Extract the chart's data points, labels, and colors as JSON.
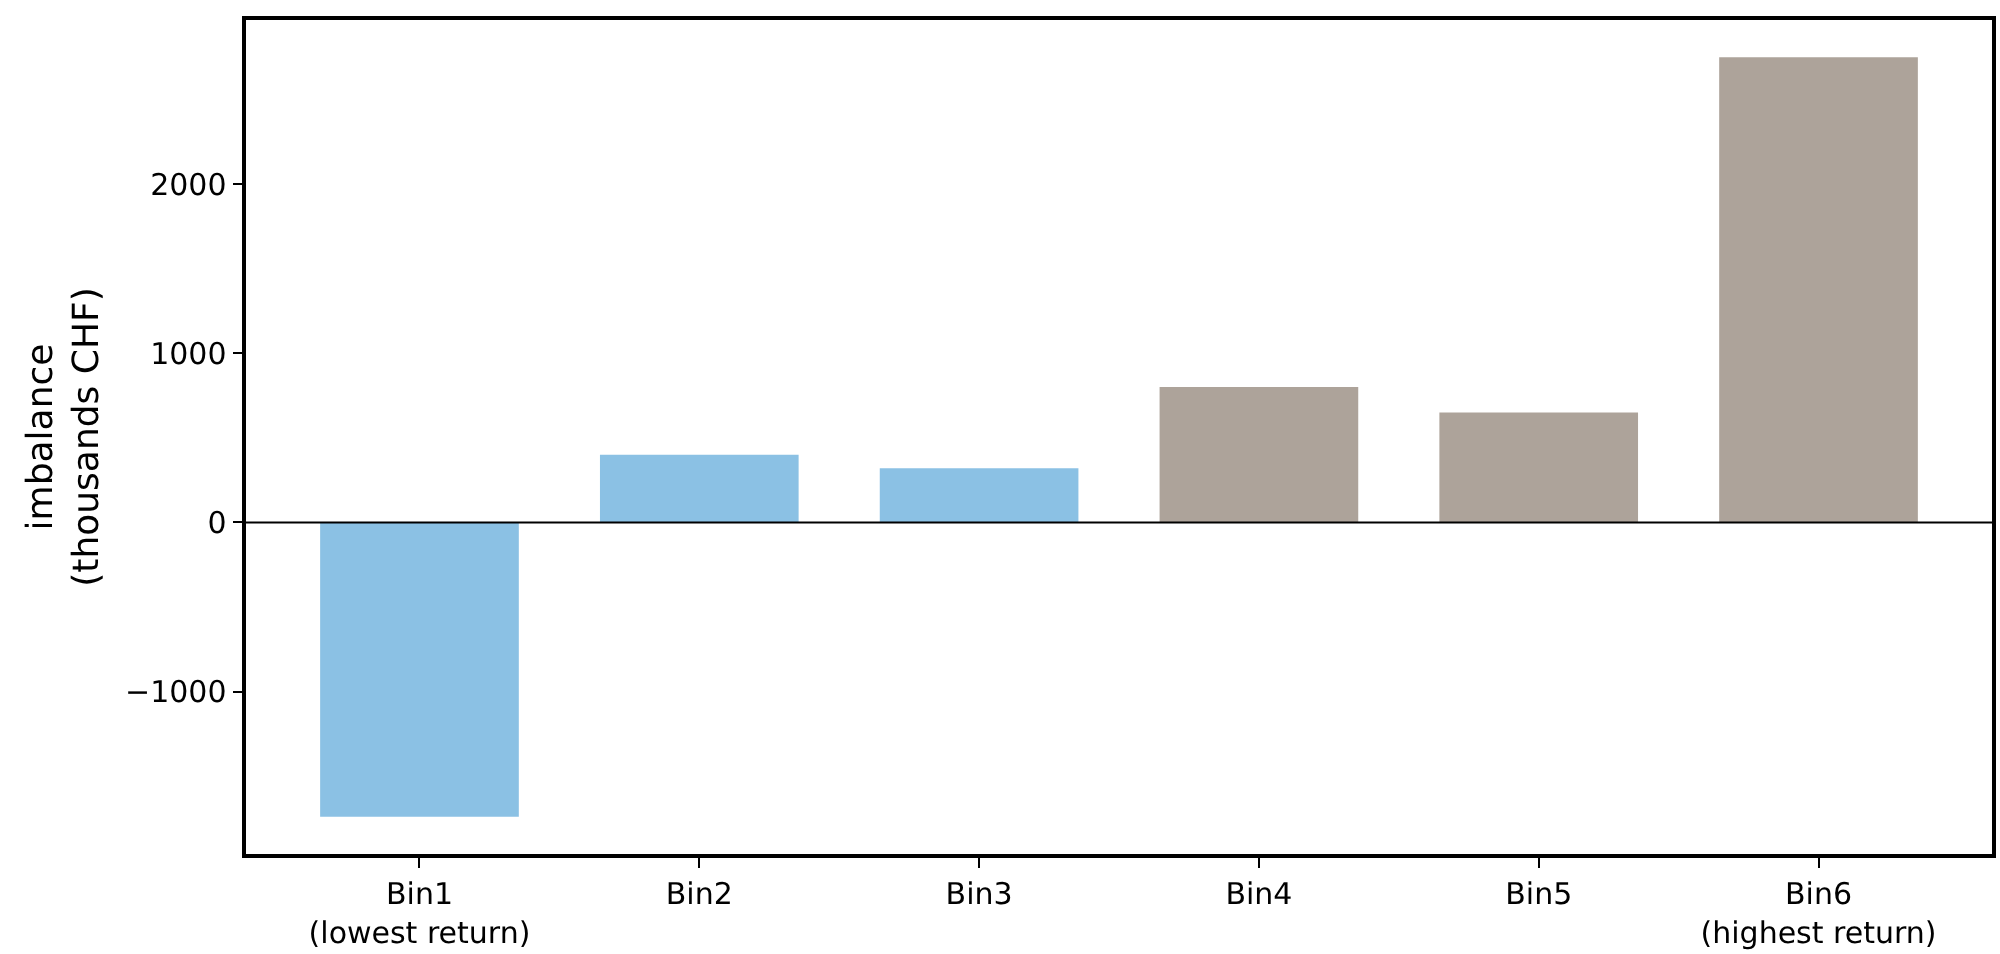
{
  "chart_data": {
    "type": "bar",
    "ylabel": "imbalance\n(thousands CHF)",
    "categories": [
      "Bin1\n(lowest return)",
      "Bin2",
      "Bin3",
      "Bin4",
      "Bin5",
      "Bin6\n(highest return)"
    ],
    "values": [
      -1740,
      400,
      320,
      800,
      650,
      2750
    ],
    "colors": [
      "#8bc1e4",
      "#8bc1e4",
      "#8bc1e4",
      "#ada39a",
      "#ada39a",
      "#ada39a"
    ],
    "ylim": [
      -1960,
      2970
    ],
    "yticks": [
      -1000,
      0,
      1000,
      2000
    ],
    "ref_lines": [
      {
        "axis": "y",
        "value": 0,
        "color": "#000000"
      }
    ]
  }
}
